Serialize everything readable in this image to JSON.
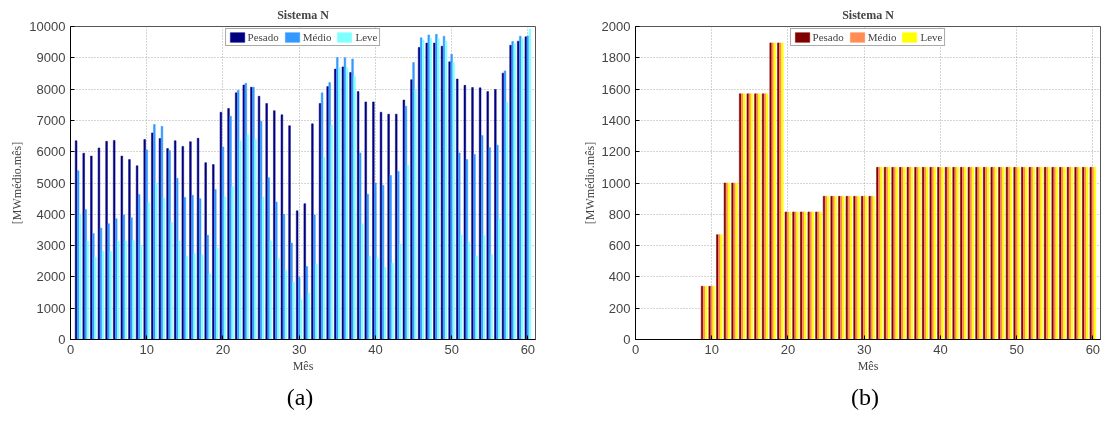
{
  "chart_data": [
    {
      "type": "bar",
      "title": "Sistema N",
      "xlabel": "Mês",
      "ylabel": "[MWmédio.mês]",
      "annotations": [
        "(a)"
      ],
      "x": [
        1,
        2,
        3,
        4,
        5,
        6,
        7,
        8,
        9,
        10,
        11,
        12,
        13,
        14,
        15,
        16,
        17,
        18,
        19,
        20,
        21,
        22,
        23,
        24,
        25,
        26,
        27,
        28,
        29,
        30,
        31,
        32,
        33,
        34,
        35,
        36,
        37,
        38,
        39,
        40,
        41,
        42,
        43,
        44,
        45,
        46,
        47,
        48,
        49,
        50,
        51,
        52,
        53,
        54,
        55,
        56,
        57,
        58,
        59,
        60
      ],
      "series": [
        {
          "name": "Pesado",
          "color": "#000080",
          "values": [
            6350,
            5950,
            5860,
            6120,
            6330,
            6360,
            5860,
            5750,
            5550,
            6390,
            6600,
            6420,
            6100,
            6350,
            6170,
            6320,
            6430,
            5650,
            5590,
            7260,
            7380,
            7880,
            8130,
            8060,
            7770,
            7540,
            7310,
            7180,
            6830,
            4110,
            4340,
            6890,
            7540,
            8080,
            8640,
            8710,
            8530,
            7920,
            7590,
            7590,
            7260,
            7200,
            7200,
            7650,
            8300,
            9330,
            9470,
            9470,
            9370,
            8870,
            8320,
            8120,
            8050,
            8040,
            7920,
            7990,
            8510,
            9400,
            9530,
            9670
          ]
        },
        {
          "name": "Médio",
          "color": "#3399ff",
          "values": [
            5390,
            4150,
            3390,
            3560,
            3700,
            3860,
            3980,
            3890,
            4630,
            6060,
            6870,
            6810,
            6040,
            5150,
            4540,
            4610,
            4500,
            3330,
            4790,
            6150,
            7130,
            7960,
            8190,
            8060,
            6970,
            5170,
            4390,
            4000,
            3080,
            1990,
            2330,
            3980,
            7880,
            8210,
            9010,
            9000,
            8960,
            5960,
            4640,
            5000,
            4930,
            5240,
            5370,
            7450,
            8850,
            9640,
            9730,
            9750,
            9690,
            9110,
            5960,
            5750,
            5910,
            6520,
            6130,
            6210,
            8580,
            9520,
            9690,
            9700
          ]
        },
        {
          "name": "Leve",
          "color": "#80ffff",
          "values": [
            3990,
            3140,
            2630,
            2820,
            2820,
            3130,
            3150,
            3160,
            3000,
            4370,
            4990,
            4520,
            3750,
            3150,
            2650,
            2750,
            2710,
            2100,
            2920,
            4560,
            4890,
            6350,
            6540,
            6400,
            4550,
            3150,
            2590,
            2200,
            1840,
            1270,
            1480,
            2410,
            5820,
            6850,
            8690,
            8690,
            8400,
            3700,
            2650,
            2590,
            2300,
            2440,
            3050,
            5560,
            7990,
            9570,
            9620,
            9610,
            9530,
            8850,
            3340,
            3110,
            2670,
            3320,
            2720,
            3850,
            7570,
            9460,
            9610,
            9920
          ]
        }
      ],
      "xlim": [
        0,
        61
      ],
      "xticks": [
        0,
        10,
        20,
        30,
        40,
        50,
        60
      ],
      "ylim": [
        0,
        10000
      ],
      "yticks": [
        0,
        1000,
        2000,
        3000,
        4000,
        5000,
        6000,
        7000,
        8000,
        9000,
        10000
      ],
      "grid": true,
      "legend": "top"
    },
    {
      "type": "bar",
      "title": "Sistema N",
      "xlabel": "Mês",
      "ylabel": "[MWmédio.mês]",
      "annotations": [
        "(b)"
      ],
      "x": [
        9,
        10,
        11,
        12,
        13,
        14,
        15,
        16,
        17,
        18,
        19,
        20,
        21,
        22,
        23,
        24,
        25,
        26,
        27,
        28,
        29,
        30,
        31,
        32,
        33,
        34,
        35,
        36,
        37,
        38,
        39,
        40,
        41,
        42,
        43,
        44,
        45,
        46,
        47,
        48,
        49,
        50,
        51,
        52,
        53,
        54,
        55,
        56,
        57,
        58,
        59,
        60
      ],
      "series": [
        {
          "name": "Pesado",
          "color": "#800000",
          "values": [
            340,
            340,
            670,
            1000,
            1000,
            1570,
            1570,
            1570,
            1570,
            1895,
            1895,
            815,
            815,
            815,
            815,
            815,
            915,
            915,
            915,
            915,
            915,
            915,
            915,
            1100,
            1100,
            1100,
            1100,
            1100,
            1100,
            1100,
            1100,
            1100,
            1100,
            1100,
            1100,
            1100,
            1100,
            1100,
            1100,
            1100,
            1100,
            1100,
            1100,
            1100,
            1100,
            1100,
            1100,
            1100,
            1100,
            1100,
            1100,
            1100
          ]
        },
        {
          "name": "Médio",
          "color": "#ff8c55",
          "values": [
            340,
            340,
            670,
            1000,
            1000,
            1570,
            1570,
            1570,
            1570,
            1895,
            1895,
            815,
            815,
            815,
            815,
            815,
            915,
            915,
            915,
            915,
            915,
            915,
            915,
            1100,
            1100,
            1100,
            1100,
            1100,
            1100,
            1100,
            1100,
            1100,
            1100,
            1100,
            1100,
            1100,
            1100,
            1100,
            1100,
            1100,
            1100,
            1100,
            1100,
            1100,
            1100,
            1100,
            1100,
            1100,
            1100,
            1100,
            1100,
            1100
          ]
        },
        {
          "name": "Leve",
          "color": "#ffff00",
          "values": [
            340,
            340,
            670,
            1000,
            1000,
            1570,
            1570,
            1570,
            1570,
            1895,
            1895,
            815,
            815,
            815,
            815,
            815,
            915,
            915,
            915,
            915,
            915,
            915,
            915,
            1100,
            1100,
            1100,
            1100,
            1100,
            1100,
            1100,
            1100,
            1100,
            1100,
            1100,
            1100,
            1100,
            1100,
            1100,
            1100,
            1100,
            1100,
            1100,
            1100,
            1100,
            1100,
            1100,
            1100,
            1100,
            1100,
            1100,
            1100,
            1100
          ]
        }
      ],
      "xlim": [
        0,
        61
      ],
      "xticks": [
        0,
        10,
        20,
        30,
        40,
        50,
        60
      ],
      "ylim": [
        0,
        2000
      ],
      "yticks": [
        0,
        200,
        400,
        600,
        800,
        1000,
        1200,
        1400,
        1600,
        1800,
        2000
      ],
      "grid": true,
      "legend": "top"
    }
  ]
}
